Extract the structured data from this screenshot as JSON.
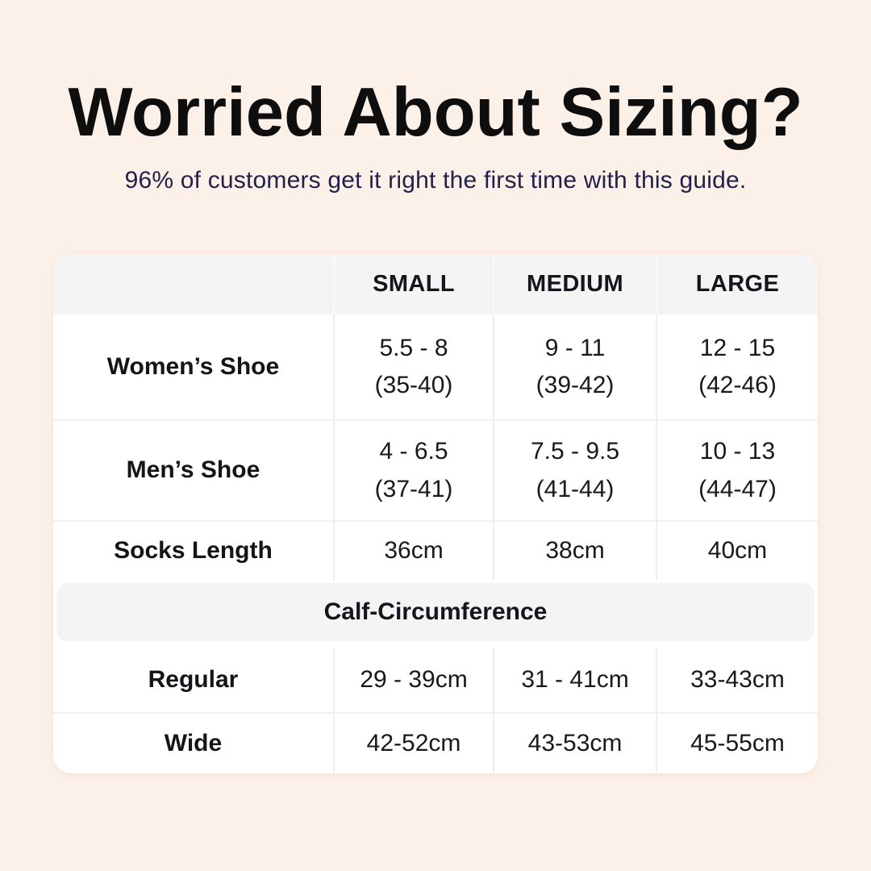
{
  "colors": {
    "background": "#FCF1E8",
    "card": "#FFFFFF",
    "header_band": "#F4F4F5",
    "divider": "#EFEFEF",
    "title_text": "#0E0E0E",
    "subtitle_text": "#23214B",
    "body_text": "#18181D"
  },
  "header": {
    "title": "Worried About Sizing?",
    "subtitle": "96% of customers get it right the first time with this guide."
  },
  "table": {
    "column_headers": {
      "small": "SMALL",
      "medium": "MEDIUM",
      "large": "LARGE"
    },
    "rows": [
      {
        "label": "Women’s Shoe",
        "cells": [
          {
            "line1": "5.5 - 8",
            "line2": "(35-40)"
          },
          {
            "line1": "9 - 11",
            "line2": "(39-42)"
          },
          {
            "line1": "12 - 15",
            "line2": "(42-46)"
          }
        ]
      },
      {
        "label": "Men’s Shoe",
        "cells": [
          {
            "line1": "4 - 6.5",
            "line2": "(37-41)"
          },
          {
            "line1": "7.5 - 9.5",
            "line2": "(41-44)"
          },
          {
            "line1": "10 - 13",
            "line2": "(44-47)"
          }
        ]
      },
      {
        "label": "Socks Length",
        "cells": [
          {
            "line1": "36cm"
          },
          {
            "line1": "38cm"
          },
          {
            "line1": "40cm"
          }
        ]
      }
    ],
    "section_header": "Calf-Circumference",
    "calf_rows": [
      {
        "label": "Regular",
        "cells": [
          {
            "line1": "29 - 39cm"
          },
          {
            "line1": "31 - 41cm"
          },
          {
            "line1": "33-43cm"
          }
        ]
      },
      {
        "label": "Wide",
        "cells": [
          {
            "line1": "42-52cm"
          },
          {
            "line1": "43-53cm"
          },
          {
            "line1": "45-55cm"
          }
        ]
      }
    ]
  },
  "chart_data": {
    "type": "table",
    "title": "Worried About Sizing?",
    "subtitle": "96% of customers get it right the first time with this guide.",
    "columns": [
      "",
      "SMALL",
      "MEDIUM",
      "LARGE"
    ],
    "rows": [
      [
        "Women’s Shoe",
        "5.5 - 8 (35-40)",
        "9 - 11 (39-42)",
        "12 - 15 (42-46)"
      ],
      [
        "Men’s Shoe",
        "4 - 6.5 (37-41)",
        "7.5 - 9.5 (41-44)",
        "10 - 13 (44-47)"
      ],
      [
        "Socks Length",
        "36cm",
        "38cm",
        "40cm"
      ],
      [
        "Calf-Circumference",
        "",
        "",
        ""
      ],
      [
        "Regular",
        "29 - 39cm",
        "31 - 41cm",
        "33-43cm"
      ],
      [
        "Wide",
        "42-52cm",
        "43-53cm",
        "45-55cm"
      ]
    ],
    "section_header_row_index": 3,
    "layout": {
      "grid": "off",
      "header_background": "#F4F4F5",
      "body_background": "#FFFFFF"
    }
  }
}
